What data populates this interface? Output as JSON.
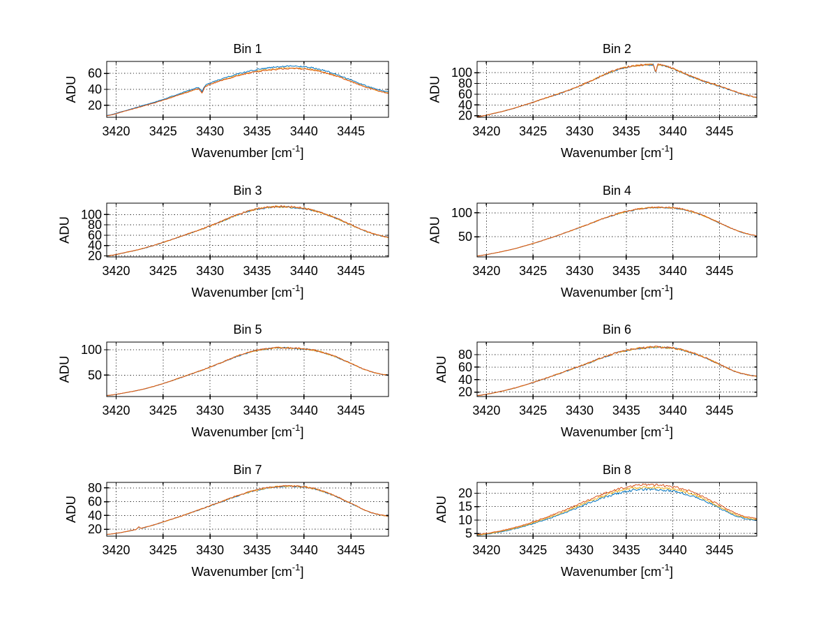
{
  "figure": {
    "background": "#ffffff",
    "ylabel": "ADU",
    "xlabel_main": "Wavenumber [cm",
    "xlabel_sup": "-1",
    "xlabel_close": "]",
    "grid": "dotted",
    "axis_color": "#000000",
    "grid_color": "#262626",
    "palette": {
      "blue": "#0072bd",
      "orange": "#d95319",
      "yellow": "#edb120"
    },
    "anchor_x": [
      3419,
      3421,
      3423,
      3425,
      3427,
      3429,
      3431,
      3433,
      3435,
      3437,
      3439,
      3441,
      3443,
      3445,
      3447,
      3449
    ]
  },
  "chart_data": [
    {
      "type": "line",
      "title": "Bin 1",
      "xlabel": "Wavenumber [cm⁻¹]",
      "ylabel": "ADU",
      "xlim": [
        3419,
        3449
      ],
      "ylim": [
        5,
        75
      ],
      "xticks": [
        3420,
        3425,
        3430,
        3435,
        3440,
        3445
      ],
      "yticks": [
        20,
        40,
        60
      ],
      "anchors_y": [
        7,
        13,
        19.5,
        26.5,
        34.5,
        42,
        50.5,
        57.5,
        62.5,
        65.5,
        66.5,
        64.5,
        58.5,
        50,
        41.5,
        35.5
      ],
      "noise": 1.0,
      "features": [
        {
          "x": 3429.15,
          "w": 0.35,
          "dy": -7
        }
      ],
      "series": [
        {
          "name": "trace-yellow",
          "color": "#edb120",
          "scale": 1.0
        },
        {
          "name": "trace-blue",
          "color": "#0072bd",
          "scale": 1.035
        },
        {
          "name": "trace-orange",
          "color": "#d95319",
          "scale": 0.995
        }
      ]
    },
    {
      "type": "line",
      "title": "Bin 2",
      "xlabel": "Wavenumber [cm⁻¹]",
      "ylabel": "ADU",
      "xlim": [
        3419,
        3449
      ],
      "ylim": [
        17,
        121
      ],
      "xticks": [
        3420,
        3425,
        3430,
        3435,
        3440,
        3445
      ],
      "yticks": [
        20,
        40,
        60,
        80,
        100
      ],
      "anchors_y": [
        18,
        25,
        34,
        45,
        56.5,
        68.5,
        83,
        99,
        110,
        114.5,
        113.5,
        100,
        86,
        75,
        63,
        54
      ],
      "noise": 1.8,
      "features": [
        {
          "x": 3438.15,
          "w": 0.22,
          "dy": -15
        }
      ],
      "series": [
        {
          "name": "trace-blue",
          "color": "#0072bd",
          "scale": 0.997
        },
        {
          "name": "trace-yellow",
          "color": "#edb120",
          "scale": 1.0
        },
        {
          "name": "trace-orange",
          "color": "#d95319",
          "scale": 1.003
        }
      ]
    },
    {
      "type": "line",
      "title": "Bin 3",
      "xlabel": "Wavenumber [cm⁻¹]",
      "ylabel": "ADU",
      "xlim": [
        3419,
        3449
      ],
      "ylim": [
        18,
        122
      ],
      "xticks": [
        3420,
        3425,
        3430,
        3435,
        3440,
        3445
      ],
      "yticks": [
        20,
        40,
        60,
        80,
        100
      ],
      "anchors_y": [
        20,
        26.5,
        35,
        46,
        58.5,
        71,
        85,
        100,
        110.5,
        115,
        114,
        108,
        96,
        80,
        65,
        56
      ],
      "noise": 1.8,
      "features": [],
      "series": [
        {
          "name": "trace-blue",
          "color": "#0072bd",
          "scale": 0.997
        },
        {
          "name": "trace-yellow",
          "color": "#edb120",
          "scale": 1.0
        },
        {
          "name": "trace-orange",
          "color": "#d95319",
          "scale": 1.003
        }
      ]
    },
    {
      "type": "line",
      "title": "Bin 4",
      "xlabel": "Wavenumber [cm⁻¹]",
      "ylabel": "ADU",
      "xlim": [
        3419,
        3449
      ],
      "ylim": [
        8,
        120
      ],
      "xticks": [
        3420,
        3425,
        3430,
        3435,
        3440,
        3445
      ],
      "yticks": [
        50,
        100
      ],
      "anchors_y": [
        10,
        16.5,
        25,
        36,
        48.5,
        62,
        76.5,
        91,
        102.5,
        109.5,
        111,
        107.5,
        96,
        79,
        62,
        52
      ],
      "noise": 1.4,
      "features": [],
      "series": [
        {
          "name": "trace-blue",
          "color": "#0072bd",
          "scale": 0.997
        },
        {
          "name": "trace-yellow",
          "color": "#edb120",
          "scale": 1.0
        },
        {
          "name": "trace-orange",
          "color": "#d95319",
          "scale": 1.003
        }
      ]
    },
    {
      "type": "line",
      "title": "Bin 5",
      "xlabel": "Wavenumber [cm⁻¹]",
      "ylabel": "ADU",
      "xlim": [
        3419,
        3449
      ],
      "ylim": [
        8,
        115
      ],
      "xticks": [
        3420,
        3425,
        3430,
        3435,
        3440,
        3445
      ],
      "yticks": [
        50,
        100
      ],
      "anchors_y": [
        10,
        15.5,
        23,
        33.5,
        46,
        59,
        73,
        88,
        98.5,
        103.5,
        103,
        99,
        88.5,
        73,
        57.5,
        50
      ],
      "noise": 1.5,
      "features": [],
      "series": [
        {
          "name": "trace-blue",
          "color": "#0072bd",
          "scale": 0.997
        },
        {
          "name": "trace-yellow",
          "color": "#edb120",
          "scale": 1.0
        },
        {
          "name": "trace-orange",
          "color": "#d95319",
          "scale": 1.003
        }
      ]
    },
    {
      "type": "line",
      "title": "Bin 6",
      "xlabel": "Wavenumber [cm⁻¹]",
      "ylabel": "ADU",
      "xlim": [
        3419,
        3449
      ],
      "ylim": [
        13,
        100
      ],
      "xticks": [
        3420,
        3425,
        3430,
        3435,
        3440,
        3445
      ],
      "yticks": [
        20,
        40,
        60,
        80
      ],
      "anchors_y": [
        14.5,
        19.5,
        26.5,
        35.5,
        45.5,
        56,
        67,
        78,
        86.5,
        91,
        91.5,
        87.5,
        78,
        64.5,
        51.5,
        45.5
      ],
      "noise": 1.5,
      "features": [],
      "series": [
        {
          "name": "trace-blue",
          "color": "#0072bd",
          "scale": 0.997
        },
        {
          "name": "trace-yellow",
          "color": "#edb120",
          "scale": 1.0
        },
        {
          "name": "trace-orange",
          "color": "#d95319",
          "scale": 1.003
        }
      ]
    },
    {
      "type": "line",
      "title": "Bin 7",
      "xlabel": "Wavenumber [cm⁻¹]",
      "ylabel": "ADU",
      "xlim": [
        3419,
        3449
      ],
      "ylim": [
        10,
        88
      ],
      "xticks": [
        3420,
        3425,
        3430,
        3435,
        3440,
        3445
      ],
      "yticks": [
        20,
        40,
        60,
        80
      ],
      "anchors_y": [
        12.5,
        16.5,
        22.5,
        30.5,
        39.5,
        49,
        59,
        69,
        77,
        81.5,
        82.5,
        79,
        70,
        57.5,
        45,
        39
      ],
      "noise": 1.1,
      "features": [
        {
          "x": 3422.4,
          "w": 0.25,
          "dy": 3
        }
      ],
      "series": [
        {
          "name": "trace-blue",
          "color": "#0072bd",
          "scale": 0.997
        },
        {
          "name": "trace-yellow",
          "color": "#edb120",
          "scale": 1.0
        },
        {
          "name": "trace-orange",
          "color": "#d95319",
          "scale": 1.003
        }
      ]
    },
    {
      "type": "line",
      "title": "Bin 8",
      "xlabel": "Wavenumber [cm⁻¹]",
      "ylabel": "ADU",
      "xlim": [
        3419,
        3449
      ],
      "ylim": [
        4,
        24
      ],
      "xticks": [
        3420,
        3425,
        3430,
        3435,
        3440,
        3445
      ],
      "yticks": [
        5,
        10,
        15,
        20
      ],
      "anchors_y": [
        4.4,
        5.4,
        6.9,
        8.9,
        11.3,
        13.9,
        16.8,
        19.4,
        21.3,
        22.1,
        21.8,
        20.7,
        18.3,
        14.9,
        11.6,
        10.2
      ],
      "noise": 0.45,
      "features": [],
      "series": [
        {
          "name": "trace-blue",
          "color": "#0072bd",
          "scale": 0.97
        },
        {
          "name": "trace-yellow",
          "color": "#edb120",
          "scale": 1.005
        },
        {
          "name": "trace-orange",
          "color": "#d95319",
          "scale": 1.045
        }
      ]
    }
  ]
}
